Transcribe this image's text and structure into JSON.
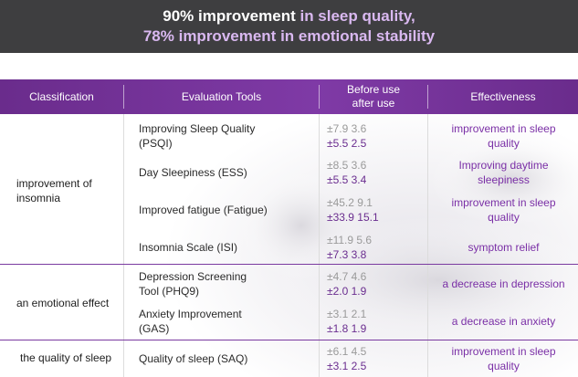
{
  "banner": {
    "line1_bold": "90% improvement",
    "line1_rest": " in sleep quality,",
    "line2": "78% improvement in emotional stability"
  },
  "table": {
    "headers": {
      "classification": "Classification",
      "tools": "Evaluation Tools",
      "before": "Before use",
      "after": "after  use",
      "effectiveness": "Effectiveness"
    },
    "groups": [
      {
        "label_line1": "improvement of",
        "label_line2": "insomnia"
      },
      {
        "label_line1": "an  emotional effect"
      },
      {
        "label_line1": "the quality of sleep"
      }
    ],
    "rows": [
      {
        "tool_line1": "Improving Sleep Quality",
        "tool_line2": "(PSQI)",
        "before": "±7.9  3.6",
        "after": "±5.5  2.5",
        "eff_line1": "improvement in  sleep",
        "eff_line2": "quality"
      },
      {
        "tool_line1": " Day Sleepiness (ESS)",
        "before": "±8.5  3.6",
        "after": "±5.5  3.4",
        "eff_line1": "Improving  daytime",
        "eff_line2": "sleepiness"
      },
      {
        "tool_line1": "Improved fatigue (Fatigue)",
        "before": "±45.2  9.1",
        "after": "±33.9  15.1",
        "eff_line1": "improvement in  sleep",
        "eff_line2": "quality"
      },
      {
        "tool_line1": "Insomnia Scale (ISI)",
        "before": "±11.9  5.6",
        "after": "±7.3  3.8",
        "eff_line1": "symptom relief"
      },
      {
        "tool_line1": "Depression Screening",
        "tool_line2": "Tool (PHQ9)",
        "before": "±4.7  4.6",
        "after": "±2.0  1.9",
        "eff_line1": "a decrease in  depression"
      },
      {
        "tool_line1": "Anxiety Improvement",
        "tool_line2": "(GAS)",
        "before": "±3.1  2.1",
        "after": "±1.8  1.9",
        "eff_line1": "a decrease in  anxiety"
      },
      {
        "tool_line1": "Quality of sleep (SAQ)",
        "before": "±6.1  4.5",
        "after": "±3.1  2.5",
        "eff_line1": "improvement in  sleep",
        "eff_line2": "quality"
      }
    ]
  },
  "colors": {
    "banner_bg": "#3e3e40",
    "header_purple": "#7f3aa6",
    "accent_purple": "#7a2fa6",
    "before_gray": "#9a9a9a"
  }
}
